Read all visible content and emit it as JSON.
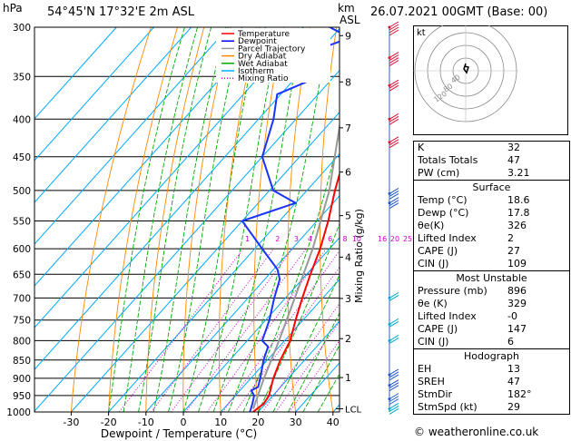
{
  "header": {
    "hpa": "hPa",
    "location": "54°45'N 17°32'E 2m ASL",
    "km": "km",
    "asl": "ASL",
    "datetime": "26.07.2021 00GMT (Base: 00)"
  },
  "legend": [
    {
      "label": "Temperature",
      "color": "#ff0000",
      "dash": "solid"
    },
    {
      "label": "Dewpoint",
      "color": "#0000ff",
      "dash": "solid"
    },
    {
      "label": "Parcel Trajectory",
      "color": "#999999",
      "dash": "solid"
    },
    {
      "label": "Dry Adiabat",
      "color": "#ff8800",
      "dash": "solid"
    },
    {
      "label": "Wet Adiabat",
      "color": "#00aa00",
      "dash": "solid"
    },
    {
      "label": "Isotherm",
      "color": "#00aaff",
      "dash": "solid"
    },
    {
      "label": "Mixing Ratio",
      "color": "#cc00cc",
      "dash": "dot"
    }
  ],
  "chart_data": {
    "type": "skew-t",
    "xlabel": "Dewpoint / Temperature (°C)",
    "ylabel_right": "Mixing Ratio (g/kg)",
    "pressure_levels": [
      300,
      350,
      400,
      450,
      500,
      550,
      600,
      650,
      700,
      750,
      800,
      850,
      900,
      950,
      1000
    ],
    "pressure_labels": [
      "300",
      "350",
      "400",
      "450",
      "500",
      "550",
      "600",
      "650",
      "700",
      "750",
      "800",
      "850",
      "900",
      "950",
      "1000"
    ],
    "x_ticks": [
      -30,
      -20,
      -10,
      0,
      10,
      20,
      30,
      40
    ],
    "x_tick_labels": [
      "-30",
      "-20",
      "-10",
      "0",
      "10",
      "20",
      "30",
      "40"
    ],
    "xlim": [
      -40,
      40
    ],
    "ylim_hpa": [
      1000,
      300
    ],
    "km_ticks": [
      {
        "km": "9",
        "p": 308
      },
      {
        "km": "8",
        "p": 356
      },
      {
        "km": "7",
        "p": 411
      },
      {
        "km": "6",
        "p": 472
      },
      {
        "km": "5",
        "p": 541
      },
      {
        "km": "4",
        "p": 616
      },
      {
        "km": "3",
        "p": 701
      },
      {
        "km": "2",
        "p": 795
      },
      {
        "km": "1",
        "p": 898
      }
    ],
    "lcl_label": "LCL",
    "lcl_p": 990,
    "mixing_ratio_labels": [
      "1",
      "2",
      "3",
      "4",
      "6",
      "8",
      "10",
      "16",
      "20",
      "25"
    ],
    "mixing_ratio_values": [
      1,
      2,
      3,
      4,
      6,
      8,
      10,
      16,
      20,
      25
    ],
    "mixing_ratio_label_p": 590,
    "temperature": [
      {
        "p": 1000,
        "t": 18.6
      },
      {
        "p": 975,
        "t": 19.5
      },
      {
        "p": 950,
        "t": 19.0
      },
      {
        "p": 925,
        "t": 17.5
      },
      {
        "p": 900,
        "t": 16.0
      },
      {
        "p": 850,
        "t": 13.5
      },
      {
        "p": 800,
        "t": 11.5
      },
      {
        "p": 750,
        "t": 8.0
      },
      {
        "p": 700,
        "t": 4.5
      },
      {
        "p": 650,
        "t": 1.0
      },
      {
        "p": 600,
        "t": -2.5
      },
      {
        "p": 550,
        "t": -7.0
      },
      {
        "p": 500,
        "t": -12.5
      },
      {
        "p": 450,
        "t": -18.0
      },
      {
        "p": 400,
        "t": -24.5
      },
      {
        "p": 350,
        "t": -33.0
      },
      {
        "p": 300,
        "t": -42.0
      }
    ],
    "dewpoint": [
      {
        "p": 1000,
        "t": 17.8
      },
      {
        "p": 975,
        "t": 16.5
      },
      {
        "p": 950,
        "t": 15.0
      },
      {
        "p": 935,
        "t": 13.0
      },
      {
        "p": 925,
        "t": 14.0
      },
      {
        "p": 900,
        "t": 12.5
      },
      {
        "p": 850,
        "t": 9.0
      },
      {
        "p": 815,
        "t": 7.0
      },
      {
        "p": 800,
        "t": 4.0
      },
      {
        "p": 750,
        "t": 1.0
      },
      {
        "p": 700,
        "t": -3.0
      },
      {
        "p": 660,
        "t": -6.0
      },
      {
        "p": 640,
        "t": -9.0
      },
      {
        "p": 600,
        "t": -18.0
      },
      {
        "p": 550,
        "t": -30.0
      },
      {
        "p": 520,
        "t": -20.0
      },
      {
        "p": 500,
        "t": -29.0
      },
      {
        "p": 450,
        "t": -40.0
      },
      {
        "p": 400,
        "t": -46.0
      },
      {
        "p": 370,
        "t": -51.0
      },
      {
        "p": 350,
        "t": -44.0
      },
      {
        "p": 320,
        "t": -50.0
      },
      {
        "p": 310,
        "t": -45.0
      },
      {
        "p": 300,
        "t": -53.0
      }
    ],
    "parcel": [
      {
        "p": 990,
        "t": 17.9
      },
      {
        "p": 900,
        "t": 13.5
      },
      {
        "p": 800,
        "t": 8.5
      },
      {
        "p": 700,
        "t": 2.5
      },
      {
        "p": 600,
        "t": -4.5
      },
      {
        "p": 500,
        "t": -14.0
      },
      {
        "p": 400,
        "t": -28.0
      },
      {
        "p": 350,
        "t": -37.0
      },
      {
        "p": 300,
        "t": -47.0
      }
    ]
  },
  "hodograph": {
    "label": "kt",
    "ring_labels": [
      "40",
      "80",
      "120"
    ]
  },
  "indices": [
    {
      "label": "K",
      "value": "32"
    },
    {
      "label": "Totals Totals",
      "value": "47"
    },
    {
      "label": "PW (cm)",
      "value": "3.21"
    }
  ],
  "surface": {
    "title": "Surface",
    "rows": [
      {
        "label": "Temp (°C)",
        "value": "18.6"
      },
      {
        "label": "Dewp (°C)",
        "value": "17.8"
      },
      {
        "label": "θe(K)",
        "value": "326"
      },
      {
        "label": "Lifted Index",
        "value": "2"
      },
      {
        "label": "CAPE (J)",
        "value": "27"
      },
      {
        "label": "CIN (J)",
        "value": "109"
      }
    ]
  },
  "most_unstable": {
    "title": "Most Unstable",
    "rows": [
      {
        "label": "Pressure (mb)",
        "value": "896"
      },
      {
        "label": "θe (K)",
        "value": "329"
      },
      {
        "label": "Lifted Index",
        "value": "-0"
      },
      {
        "label": "CAPE (J)",
        "value": "147"
      },
      {
        "label": "CIN (J)",
        "value": "6"
      }
    ]
  },
  "hodograph_table": {
    "title": "Hodograph",
    "rows": [
      {
        "label": "EH",
        "value": "13"
      },
      {
        "label": "SREH",
        "value": "47"
      },
      {
        "label": "StmDir",
        "value": "182°"
      },
      {
        "label": "StmSpd (kt)",
        "value": "29"
      }
    ]
  },
  "footer": {
    "copyright": "© weatheronline.co.uk"
  },
  "colors": {
    "temperature": "#ff0000",
    "dewpoint": "#1a33ff",
    "parcel": "#999999",
    "dry_adiabat": "#ff8800",
    "wet_adiabat": "#00aa00",
    "isotherm": "#00aaff",
    "mixing_ratio": "#cc00cc",
    "wind_upper": "#dd1133",
    "wind_mid": "#2255cc",
    "wind_low": "#00aacc"
  }
}
